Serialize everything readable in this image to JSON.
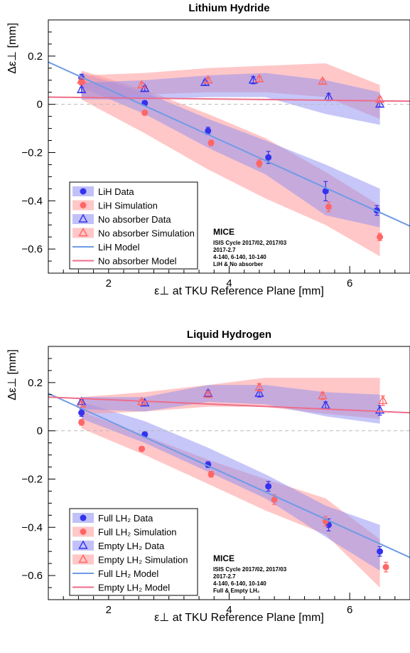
{
  "chart_data": [
    {
      "type": "scatter",
      "title": "Lithium Hydride",
      "xlabel": "ε⊥ at TKU Reference Plane [mm]",
      "ylabel": "Δε⊥ [mm]",
      "xlim": [
        1.0,
        7.0
      ],
      "ylim": [
        -0.7,
        0.35
      ],
      "xticks": [
        2,
        4,
        6
      ],
      "yticks": [
        0.2,
        0,
        -0.2,
        -0.4,
        -0.6
      ],
      "ytick_labels": [
        "0.2",
        "0",
        "−0.2",
        "−0.4",
        "−0.6"
      ],
      "xtick_labels": [
        "2",
        "4",
        "6"
      ],
      "series": [
        {
          "name": "LiH Data",
          "kind": "points_circle",
          "color": "#3333ee",
          "x": [
            1.55,
            2.6,
            3.65,
            4.65,
            5.6,
            6.45
          ],
          "y": [
            0.11,
            0.005,
            -0.11,
            -0.22,
            -0.36,
            -0.44
          ],
          "err": [
            0.015,
            0.01,
            0.015,
            0.025,
            0.04,
            0.02
          ]
        },
        {
          "name": "LiH Simulation",
          "kind": "points_circle",
          "color": "#ff6666",
          "x": [
            1.55,
            2.6,
            3.7,
            4.5,
            5.65,
            6.5
          ],
          "y": [
            0.09,
            -0.035,
            -0.16,
            -0.245,
            -0.425,
            -0.55
          ],
          "err": [
            0.01,
            0.01,
            0.012,
            0.015,
            0.02,
            0.015
          ]
        },
        {
          "name": "No absorber Data",
          "kind": "points_triangle",
          "color": "#3333ee",
          "x": [
            1.55,
            2.6,
            3.6,
            4.4,
            5.65,
            6.5
          ],
          "y": [
            0.06,
            0.065,
            0.09,
            0.1,
            0.03,
            0.0
          ],
          "err": [
            0.01,
            0.01,
            0.01,
            0.015,
            0.015,
            0.01
          ]
        },
        {
          "name": "No absorber Simulation",
          "kind": "points_triangle",
          "color": "#ff6666",
          "x": [
            1.55,
            2.55,
            3.65,
            4.5,
            5.55,
            6.5
          ],
          "y": [
            0.1,
            0.08,
            0.1,
            0.105,
            0.095,
            0.02
          ],
          "err": [
            0.01,
            0.01,
            0.01,
            0.01,
            0.01,
            0.01
          ]
        },
        {
          "name": "LiH Model",
          "kind": "line",
          "color": "#6f9be6",
          "x": [
            1.0,
            7.0
          ],
          "y": [
            0.175,
            -0.505
          ]
        },
        {
          "name": "No absorber Model",
          "kind": "line",
          "color": "#ee6d8a",
          "x": [
            1.0,
            7.0
          ],
          "y": [
            0.03,
            0.013
          ]
        }
      ],
      "bands": [
        {
          "color": "#ff9999",
          "opacity": 0.55,
          "x": [
            1.55,
            2.6,
            3.65,
            4.6,
            5.6,
            6.5
          ],
          "lo": [
            0.02,
            -0.12,
            -0.27,
            -0.39,
            -0.5,
            -0.63
          ],
          "hi": [
            0.14,
            0.06,
            -0.04,
            -0.14,
            -0.28,
            -0.42
          ]
        },
        {
          "color": "#8e8ef2",
          "opacity": 0.5,
          "x": [
            1.55,
            2.6,
            3.65,
            4.6,
            5.6,
            6.5
          ],
          "lo": [
            0.07,
            -0.04,
            -0.18,
            -0.29,
            -0.46,
            -0.51
          ],
          "hi": [
            0.13,
            0.05,
            -0.06,
            -0.15,
            -0.25,
            -0.35
          ]
        },
        {
          "color": "#ff9999",
          "opacity": 0.55,
          "x": [
            1.55,
            2.6,
            3.65,
            4.6,
            5.6,
            6.5
          ],
          "lo": [
            0.03,
            0.04,
            0.05,
            0.05,
            0.03,
            -0.06
          ],
          "hi": [
            0.12,
            0.13,
            0.15,
            0.16,
            0.17,
            0.08
          ]
        },
        {
          "color": "#8e8ef2",
          "opacity": 0.5,
          "x": [
            1.55,
            2.6,
            3.65,
            4.6,
            5.6,
            6.5
          ],
          "lo": [
            0.02,
            0.02,
            0.03,
            0.03,
            -0.04,
            -0.085
          ],
          "hi": [
            0.09,
            0.1,
            0.12,
            0.13,
            0.1,
            0.05
          ]
        }
      ],
      "legend_labels": {
        "data": "LiH Data",
        "sim": "LiH Simulation",
        "empty_data": "No absorber Data",
        "empty_sim": "No absorber Simulation",
        "model": "LiH Model",
        "empty_model": "No absorber Model"
      },
      "legend_placement": "bottom-left",
      "annotation": {
        "title": "MICE",
        "lines": [
          "ISIS Cycle 2017/02, 2017/03",
          "2017-2.7",
          "4-140, 6-140, 10-140",
          "LiH & No absorber"
        ]
      },
      "grid": false
    },
    {
      "type": "scatter",
      "title": "Liquid Hydrogen",
      "xlabel": "ε⊥ at TKU Reference Plane [mm]",
      "ylabel": "Δε⊥ [mm]",
      "xlim": [
        1.0,
        7.0
      ],
      "ylim": [
        -0.7,
        0.35
      ],
      "xticks": [
        2,
        4,
        6
      ],
      "yticks": [
        0.2,
        0,
        -0.2,
        -0.4,
        -0.6
      ],
      "ytick_labels": [
        "0.2",
        "0",
        "−0.2",
        "−0.4",
        "−0.6"
      ],
      "xtick_labels": [
        "2",
        "4",
        "6"
      ],
      "series": [
        {
          "name": "Full LH2 Data",
          "kind": "points_circle",
          "color": "#3333ee",
          "x": [
            1.55,
            2.6,
            3.65,
            4.65,
            5.65,
            6.5
          ],
          "y": [
            0.075,
            -0.015,
            -0.14,
            -0.23,
            -0.39,
            -0.5
          ],
          "err": [
            0.015,
            0.01,
            0.012,
            0.02,
            0.025,
            0.02
          ]
        },
        {
          "name": "Full LH2 Simulation",
          "kind": "points_circle",
          "color": "#ff6666",
          "x": [
            1.55,
            2.55,
            3.7,
            4.75,
            5.6,
            6.6
          ],
          "y": [
            0.035,
            -0.075,
            -0.18,
            -0.285,
            -0.375,
            -0.565
          ],
          "err": [
            0.012,
            0.01,
            0.012,
            0.02,
            0.02,
            0.02
          ]
        },
        {
          "name": "Empty LH2 Data",
          "kind": "points_triangle",
          "color": "#3333ee",
          "x": [
            1.55,
            2.6,
            3.65,
            4.5,
            5.6,
            6.5
          ],
          "y": [
            0.12,
            0.115,
            0.155,
            0.155,
            0.105,
            0.085
          ],
          "err": [
            0.01,
            0.01,
            0.012,
            0.015,
            0.015,
            0.02
          ]
        },
        {
          "name": "Empty LH2 Simulation",
          "kind": "points_triangle",
          "color": "#ff6666",
          "x": [
            1.55,
            2.55,
            3.65,
            4.5,
            5.55,
            6.55
          ],
          "y": [
            0.11,
            0.12,
            0.15,
            0.18,
            0.145,
            0.125
          ],
          "err": [
            0.01,
            0.01,
            0.012,
            0.015,
            0.015,
            0.02
          ]
        },
        {
          "name": "Full LH2 Model",
          "kind": "line",
          "color": "#6f9be6",
          "x": [
            1.0,
            7.0
          ],
          "y": [
            0.155,
            -0.525
          ]
        },
        {
          "name": "Empty LH2 Model",
          "kind": "line",
          "color": "#ee6d8a",
          "x": [
            1.0,
            7.0
          ],
          "y": [
            0.14,
            0.075
          ]
        }
      ],
      "bands": [
        {
          "color": "#ff9999",
          "opacity": 0.55,
          "x": [
            1.55,
            2.6,
            3.65,
            4.6,
            5.6,
            6.5
          ],
          "lo": [
            0.01,
            -0.1,
            -0.22,
            -0.33,
            -0.43,
            -0.65
          ],
          "hi": [
            0.08,
            -0.02,
            -0.12,
            -0.2,
            -0.28,
            -0.45
          ]
        },
        {
          "color": "#8e8ef2",
          "opacity": 0.5,
          "x": [
            1.55,
            2.6,
            3.65,
            4.6,
            5.6,
            6.5
          ],
          "lo": [
            0.05,
            -0.05,
            -0.17,
            -0.28,
            -0.44,
            -0.58
          ],
          "hi": [
            0.12,
            0.04,
            -0.07,
            -0.18,
            -0.31,
            -0.39
          ]
        },
        {
          "color": "#ff9999",
          "opacity": 0.55,
          "x": [
            1.55,
            2.6,
            3.65,
            4.6,
            5.6,
            6.5
          ],
          "lo": [
            0.07,
            0.08,
            0.1,
            0.1,
            0.07,
            0.05
          ],
          "hi": [
            0.14,
            0.16,
            0.19,
            0.22,
            0.22,
            0.22
          ]
        },
        {
          "color": "#8e8ef2",
          "opacity": 0.5,
          "x": [
            1.55,
            2.6,
            3.65,
            4.6,
            5.6,
            6.5
          ],
          "lo": [
            0.09,
            0.08,
            0.12,
            0.11,
            0.06,
            0.03
          ],
          "hi": [
            0.14,
            0.14,
            0.19,
            0.19,
            0.16,
            0.15
          ]
        }
      ],
      "legend_labels": {
        "data": "Full LH₂ Data",
        "sim": "Full LH₂ Simulation",
        "empty_data": "Empty LH₂ Data",
        "empty_sim": "Empty LH₂ Simulation",
        "model": "Full LH₂ Model",
        "empty_model": "Empty LH₂ Model"
      },
      "legend_placement": "bottom-left",
      "annotation": {
        "title": "MICE",
        "lines": [
          "ISIS Cycle 2017/02, 2017/03",
          "2017-2.7",
          "4-140, 6-140, 10-140",
          "Full & Empty LH₂"
        ]
      },
      "grid": false
    }
  ]
}
